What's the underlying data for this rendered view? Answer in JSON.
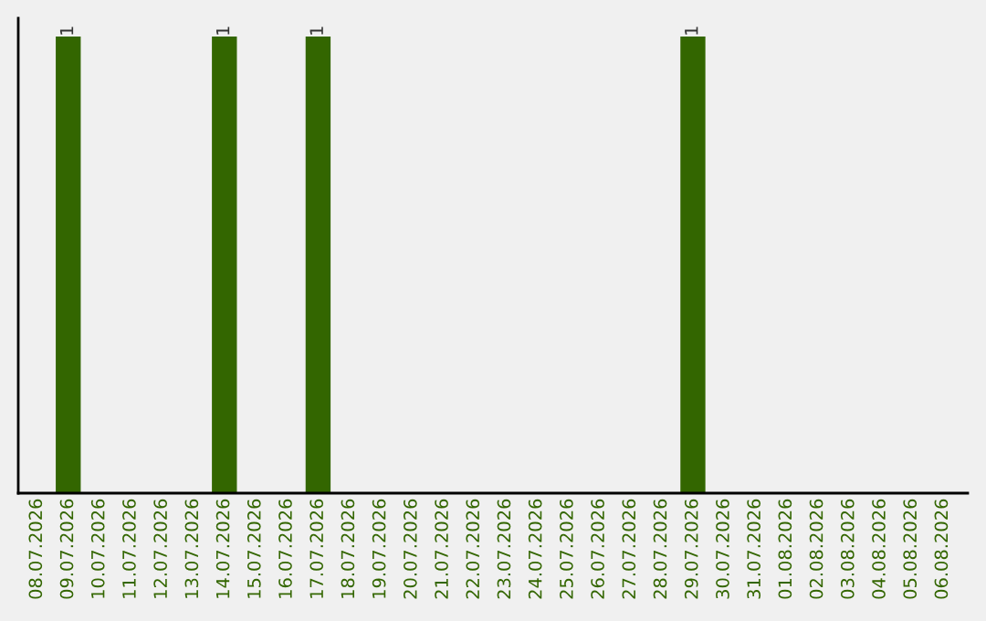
{
  "chart_data": {
    "type": "bar",
    "categories": [
      "08.07.2026",
      "09.07.2026",
      "10.07.2026",
      "11.07.2026",
      "12.07.2026",
      "13.07.2026",
      "14.07.2026",
      "15.07.2026",
      "16.07.2026",
      "17.07.2026",
      "18.07.2026",
      "19.07.2026",
      "20.07.2026",
      "21.07.2026",
      "22.07.2026",
      "23.07.2026",
      "24.07.2026",
      "25.07.2026",
      "26.07.2026",
      "27.07.2026",
      "28.07.2026",
      "29.07.2026",
      "30.07.2026",
      "31.07.2026",
      "01.08.2026",
      "02.08.2026",
      "03.08.2026",
      "04.08.2026",
      "05.08.2026",
      "06.08.2026"
    ],
    "values": [
      0,
      1,
      0,
      0,
      0,
      0,
      1,
      0,
      0,
      1,
      0,
      0,
      0,
      0,
      0,
      0,
      0,
      0,
      0,
      0,
      0,
      1,
      0,
      0,
      0,
      0,
      0,
      0,
      0,
      0
    ],
    "value_labels": [
      null,
      "1",
      null,
      null,
      null,
      null,
      "1",
      null,
      null,
      "1",
      null,
      null,
      null,
      null,
      null,
      null,
      null,
      null,
      null,
      null,
      null,
      "1",
      null,
      null,
      null,
      null,
      null,
      null,
      null,
      null
    ],
    "color": "#336600",
    "ylim": [
      0,
      1.04
    ],
    "tick_labels": "x",
    "grid": false,
    "legend": false
  }
}
